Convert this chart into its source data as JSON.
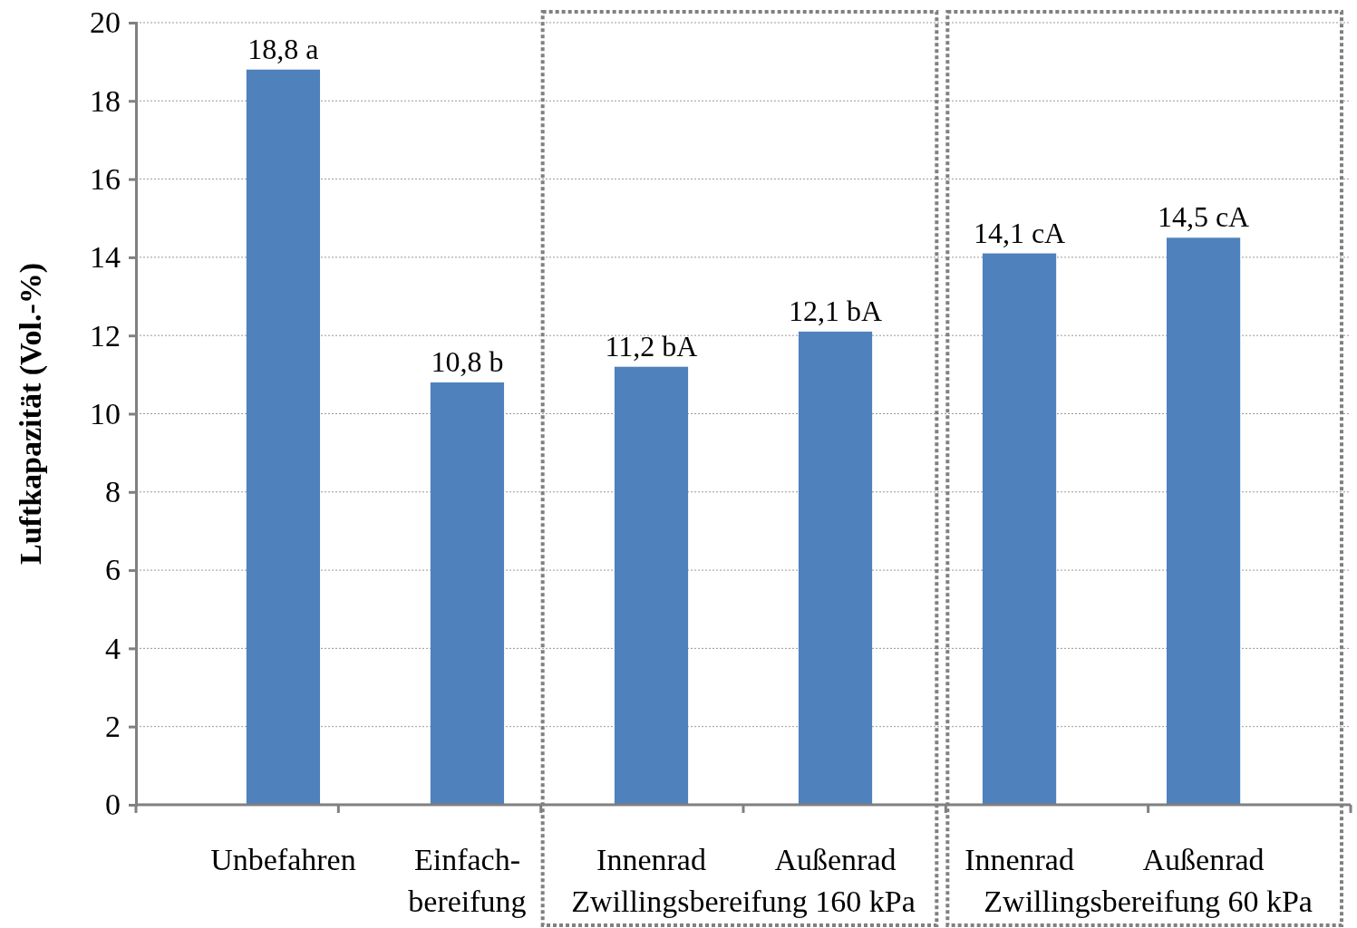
{
  "chart_data": {
    "type": "bar",
    "ylabel": "Luftkapazität  (Vol.-%)",
    "categories": [
      "Unbefahren",
      "Einfach-bereifung",
      "Innenrad",
      "Außenrad",
      "Innenrad",
      "Außenrad"
    ],
    "values": [
      18.8,
      10.8,
      11.2,
      12.1,
      14.1,
      14.5
    ],
    "value_labels": [
      "18,8 a",
      "10,8 b",
      "11,2 bA",
      "12,1 bA",
      "14,1 cA",
      "14,5 cA"
    ],
    "color": "#4f81bd",
    "ylim": [
      0,
      20
    ],
    "yticks": [
      0,
      2,
      4,
      6,
      8,
      10,
      12,
      14,
      16,
      18,
      20
    ],
    "grid": "y",
    "annotations": [
      "Zwillingsbereifung 160 kPa",
      "Zwillingsbereifung 60 kPa"
    ]
  }
}
